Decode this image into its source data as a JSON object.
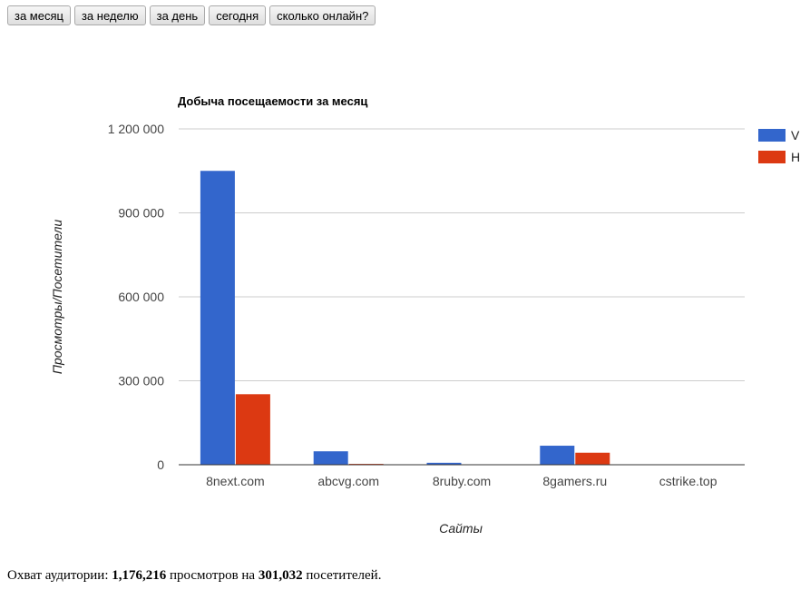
{
  "toolbar": {
    "buttons": [
      "за месяц",
      "за неделю",
      "за день",
      "сегодня",
      "сколько онлайн?"
    ]
  },
  "chart_data": {
    "type": "bar",
    "title": "Добыча посещаемости за месяц",
    "xlabel": "Сайты",
    "ylabel": "Просмотры/Посетители",
    "categories": [
      "8next.com",
      "abcvg.com",
      "8ruby.com",
      "8gamers.ru",
      "cstrike.top"
    ],
    "series": [
      {
        "name": "V",
        "color": "#3366cc",
        "values": [
          1050000,
          48000,
          7000,
          68000,
          1000
        ]
      },
      {
        "name": "H",
        "color": "#dc3912",
        "values": [
          252000,
          3000,
          1500,
          43000,
          300
        ]
      }
    ],
    "ylim": [
      0,
      1200000
    ],
    "yticks": [
      0,
      300000,
      600000,
      900000,
      1200000
    ],
    "ytick_labels": [
      "0",
      "300 000",
      "600 000",
      "900 000",
      "1 200 000"
    ],
    "grid": true,
    "legend": "right"
  },
  "summary": {
    "prefix": "Охват аудитории:",
    "views": "1,176,216",
    "middle": "просмотров на",
    "visitors": "301,032",
    "suffix": "посетителей."
  }
}
